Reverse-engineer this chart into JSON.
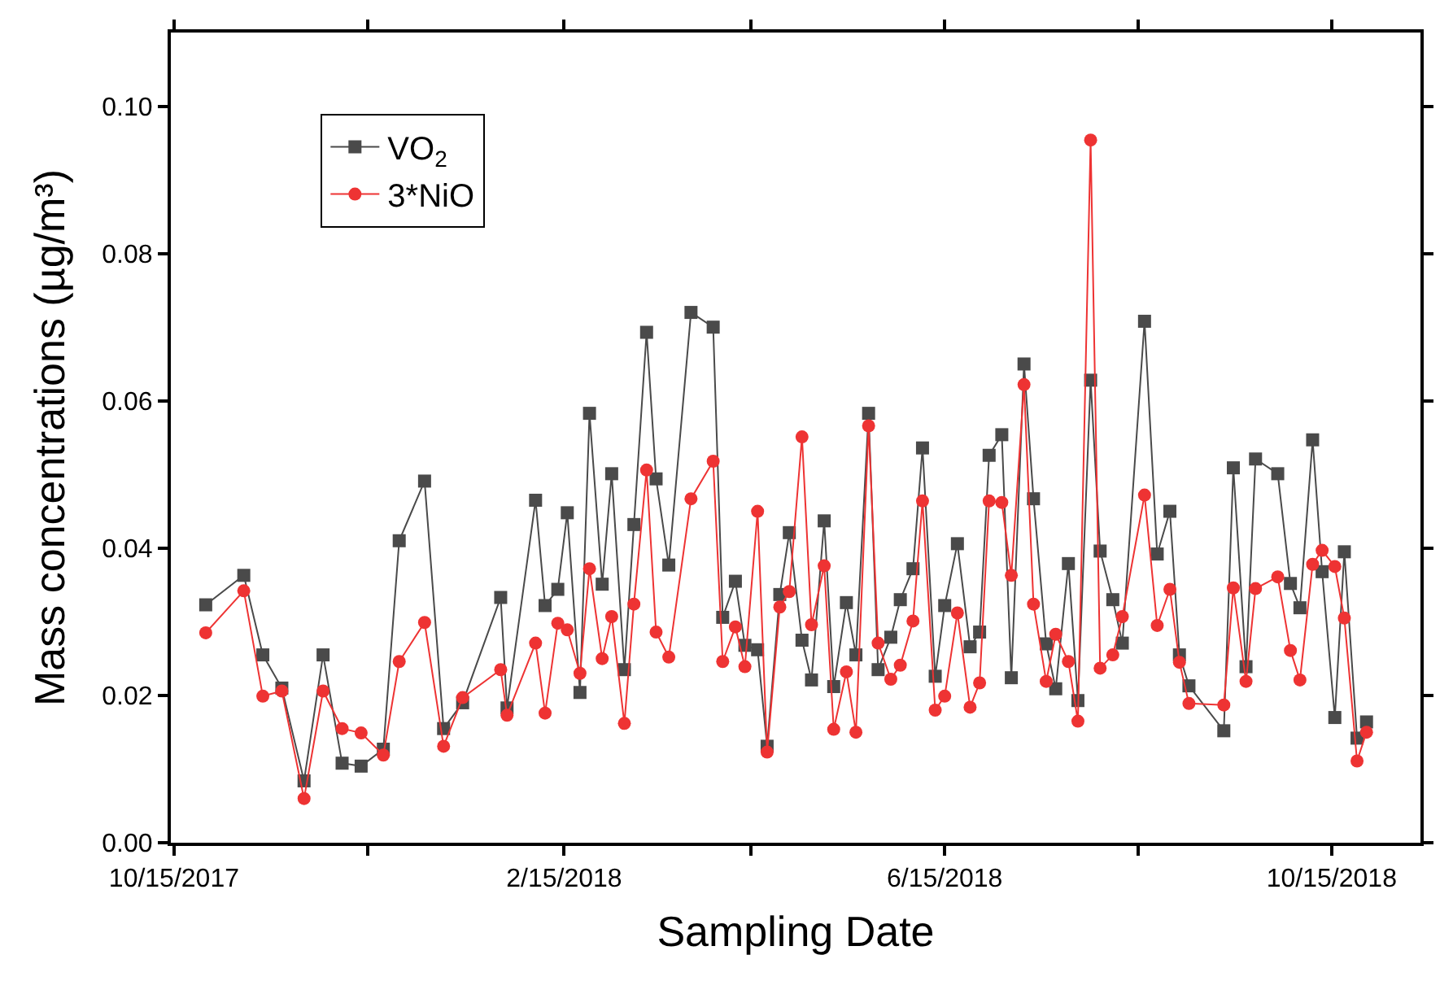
{
  "chart_data": {
    "type": "line",
    "xlabel": "Sampling Date",
    "ylabel": "Mass concentrations (µg/m³)",
    "x": [
      "2017-10-25",
      "2017-11-06",
      "2017-11-12",
      "2017-11-18",
      "2017-11-25",
      "2017-12-01",
      "2017-12-07",
      "2017-12-13",
      "2017-12-20",
      "2017-12-25",
      "2018-01-02",
      "2018-01-08",
      "2018-01-14",
      "2018-01-26",
      "2018-01-28",
      "2018-02-06",
      "2018-02-09",
      "2018-02-13",
      "2018-02-16",
      "2018-02-20",
      "2018-02-23",
      "2018-02-27",
      "2018-03-02",
      "2018-03-06",
      "2018-03-09",
      "2018-03-13",
      "2018-03-16",
      "2018-03-20",
      "2018-03-27",
      "2018-04-03",
      "2018-04-06",
      "2018-04-10",
      "2018-04-13",
      "2018-04-17",
      "2018-04-20",
      "2018-04-24",
      "2018-04-27",
      "2018-05-01",
      "2018-05-04",
      "2018-05-08",
      "2018-05-11",
      "2018-05-15",
      "2018-05-18",
      "2018-05-22",
      "2018-05-25",
      "2018-05-29",
      "2018-06-01",
      "2018-06-05",
      "2018-06-08",
      "2018-06-12",
      "2018-06-15",
      "2018-06-19",
      "2018-06-23",
      "2018-06-26",
      "2018-06-29",
      "2018-07-03",
      "2018-07-06",
      "2018-07-10",
      "2018-07-13",
      "2018-07-17",
      "2018-07-20",
      "2018-07-24",
      "2018-07-27",
      "2018-07-31",
      "2018-08-03",
      "2018-08-07",
      "2018-08-10",
      "2018-08-17",
      "2018-08-21",
      "2018-08-25",
      "2018-08-28",
      "2018-08-31",
      "2018-09-11",
      "2018-09-14",
      "2018-09-18",
      "2018-09-21",
      "2018-09-28",
      "2018-10-02",
      "2018-10-05",
      "2018-10-09",
      "2018-10-12",
      "2018-10-16",
      "2018-10-19",
      "2018-10-23",
      "2018-10-26"
    ],
    "series": [
      {
        "name": "VO$_{2}$",
        "color": "#4a4a4a",
        "marker": "square",
        "values": [
          0.0323,
          0.0363,
          0.0255,
          0.021,
          0.0084,
          0.0255,
          0.0108,
          0.0104,
          0.0127,
          0.041,
          0.0491,
          0.0155,
          0.019,
          0.0333,
          0.0183,
          0.0465,
          0.0322,
          0.0344,
          0.0448,
          0.0204,
          0.0583,
          0.0351,
          0.0501,
          0.0235,
          0.0432,
          0.0693,
          0.0494,
          0.0377,
          0.072,
          0.07,
          0.0306,
          0.0355,
          0.0268,
          0.0262,
          0.0131,
          0.0337,
          0.0421,
          0.0275,
          0.0221,
          0.0437,
          0.0212,
          0.0326,
          0.0255,
          0.0583,
          0.0235,
          0.0279,
          0.033,
          0.0372,
          0.0536,
          0.0226,
          0.0322,
          0.0406,
          0.0266,
          0.0286,
          0.0526,
          0.0554,
          0.0224,
          0.065,
          0.0467,
          0.027,
          0.0209,
          0.0379,
          0.0193,
          0.0628,
          0.0396,
          0.033,
          0.0271,
          0.0708,
          0.0392,
          0.045,
          0.0255,
          0.0213,
          0.0152,
          0.0509,
          0.0239,
          0.0521,
          0.0501,
          0.0352,
          0.0319,
          0.0547,
          0.0368,
          0.017,
          0.0395,
          0.0142,
          0.0164
        ]
      },
      {
        "name": "3*NiO",
        "color": "#ee3333",
        "marker": "circle",
        "values": [
          0.0285,
          0.0342,
          0.0199,
          0.0206,
          0.006,
          0.0206,
          0.0155,
          0.0149,
          0.0119,
          0.0246,
          0.0299,
          0.0131,
          0.0197,
          0.0235,
          0.0173,
          0.0271,
          0.0176,
          0.0298,
          0.0289,
          0.023,
          0.0372,
          0.025,
          0.0307,
          0.0162,
          0.0324,
          0.0506,
          0.0286,
          0.0252,
          0.0467,
          0.0518,
          0.0246,
          0.0293,
          0.0239,
          0.045,
          0.0123,
          0.032,
          0.0341,
          0.0551,
          0.0296,
          0.0376,
          0.0154,
          0.0232,
          0.015,
          0.0566,
          0.0271,
          0.0222,
          0.0241,
          0.0301,
          0.0464,
          0.018,
          0.0199,
          0.0312,
          0.0184,
          0.0217,
          0.0464,
          0.0462,
          0.0363,
          0.0622,
          0.0324,
          0.0219,
          0.0283,
          0.0246,
          0.0165,
          0.0954,
          0.0237,
          0.0255,
          0.0307,
          0.0472,
          0.0295,
          0.0344,
          0.0245,
          0.0189,
          0.0187,
          0.0346,
          0.0219,
          0.0345,
          0.0361,
          0.0261,
          0.0221,
          0.0378,
          0.0397,
          0.0375,
          0.0305,
          0.0111,
          0.015
        ]
      }
    ],
    "xlim": [
      "2017-10-14",
      "2018-11-12"
    ],
    "xticks": [
      {
        "value": "2017-10-15",
        "label": "10/15/2017"
      },
      {
        "value": "2017-12-15",
        "label": null
      },
      {
        "value": "2018-02-15",
        "label": "2/15/2018"
      },
      {
        "value": "2018-04-15",
        "label": null
      },
      {
        "value": "2018-06-15",
        "label": "6/15/2018"
      },
      {
        "value": "2018-08-15",
        "label": null
      },
      {
        "value": "2018-10-15",
        "label": "10/15/2018"
      }
    ],
    "ylim": [
      0,
      0.11
    ],
    "yticks": [
      {
        "value": 0,
        "label": "0.00"
      },
      {
        "value": 0.02,
        "label": "0.02"
      },
      {
        "value": 0.04,
        "label": "0.04"
      },
      {
        "value": 0.06,
        "label": "0.06"
      },
      {
        "value": 0.08,
        "label": "0.08"
      },
      {
        "value": 0.1,
        "label": "0.10"
      }
    ],
    "legend": "top left",
    "line_style": "solid"
  }
}
